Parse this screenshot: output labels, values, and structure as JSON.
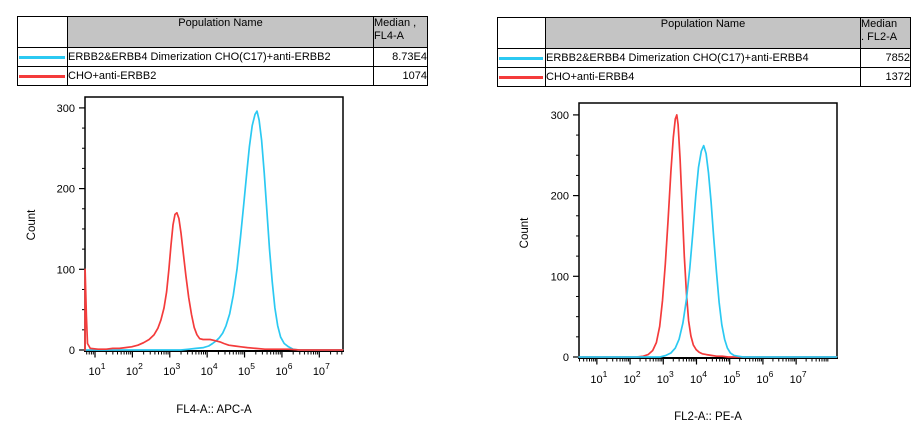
{
  "panels": [
    {
      "table": {
        "population_header": "Population Name",
        "median_header_line1": "Median ,",
        "median_header_line2": "FL4-A",
        "rows": [
          {
            "color": "#2bc9f2",
            "name": "ERBB2&ERBB4 Dimerization CHO(C17)+anti-ERBB2",
            "median": "8.73E4"
          },
          {
            "color": "#f43b3b",
            "name": "CHO+anti-ERBB2",
            "median": "1074"
          }
        ]
      }
    },
    {
      "table": {
        "population_header": "Population Name",
        "median_header_line1": "Median",
        "median_header_line2": ". FL2-A",
        "rows": [
          {
            "color": "#2bc9f2",
            "name": "ERBB2&ERBB4 Dimerization CHO(C17)+anti-ERBB4",
            "median": "7852"
          },
          {
            "color": "#f43b3b",
            "name": "CHO+anti-ERBB4",
            "median": "1372"
          }
        ]
      }
    }
  ],
  "chart_data": [
    {
      "type": "line",
      "title": "",
      "xlabel": "FL4-A:: APC-A",
      "ylabel": "Count",
      "xscale": "log",
      "xlim": [
        5.4,
        43000000
      ],
      "ylim": [
        0,
        313
      ],
      "x_tick_exponents": [
        1,
        2,
        3,
        4,
        5,
        6,
        7
      ],
      "y_major_ticks": [
        0,
        100,
        200,
        300
      ],
      "y_minor_step": 25,
      "grid": false,
      "legend_position": "table-above",
      "series": [
        {
          "name": "ERBB2&ERBB4 Dimerization CHO(C17)+anti-ERBB2",
          "color": "#2bc9f2",
          "median": "8.73E4",
          "points": [
            [
              5.4,
              0
            ],
            [
              2000,
              0
            ],
            [
              3200,
              1
            ],
            [
              5000,
              2
            ],
            [
              8000,
              3
            ],
            [
              11000,
              5
            ],
            [
              14000,
              8
            ],
            [
              17000,
              11
            ],
            [
              21000,
              15
            ],
            [
              26000,
              21
            ],
            [
              32000,
              30
            ],
            [
              40000,
              45
            ],
            [
              50000,
              68
            ],
            [
              63000,
              100
            ],
            [
              78000,
              140
            ],
            [
              95000,
              180
            ],
            [
              115000,
              220
            ],
            [
              135000,
              252
            ],
            [
              160000,
              278
            ],
            [
              190000,
              292
            ],
            [
              215000,
              296
            ],
            [
              245000,
              285
            ],
            [
              285000,
              260
            ],
            [
              335000,
              220
            ],
            [
              395000,
              172
            ],
            [
              465000,
              125
            ],
            [
              550000,
              85
            ],
            [
              650000,
              52
            ],
            [
              770000,
              30
            ],
            [
              920000,
              16
            ],
            [
              1150000,
              8
            ],
            [
              1500000,
              4
            ],
            [
              2000000,
              1
            ],
            [
              2800000,
              0
            ],
            [
              42000000,
              0
            ]
          ]
        },
        {
          "name": "CHO+anti-ERBB2",
          "color": "#f43b3b",
          "median": "1074",
          "points": [
            [
              5.4,
              0
            ],
            [
              5.45,
              100
            ],
            [
              5.9,
              42
            ],
            [
              6.3,
              8
            ],
            [
              7.5,
              2
            ],
            [
              12,
              1
            ],
            [
              20,
              1
            ],
            [
              30,
              2
            ],
            [
              45,
              2
            ],
            [
              65,
              3
            ],
            [
              95,
              4
            ],
            [
              140,
              6
            ],
            [
              200,
              9
            ],
            [
              280,
              13
            ],
            [
              380,
              19
            ],
            [
              480,
              27
            ],
            [
              580,
              37
            ],
            [
              700,
              52
            ],
            [
              820,
              72
            ],
            [
              950,
              100
            ],
            [
              1080,
              130
            ],
            [
              1220,
              155
            ],
            [
              1380,
              168
            ],
            [
              1550,
              170
            ],
            [
              1750,
              163
            ],
            [
              2000,
              145
            ],
            [
              2300,
              120
            ],
            [
              2700,
              92
            ],
            [
              3200,
              65
            ],
            [
              3800,
              44
            ],
            [
              4500,
              28
            ],
            [
              5300,
              19
            ],
            [
              6300,
              14
            ],
            [
              7800,
              13
            ],
            [
              9500,
              13
            ],
            [
              12000,
              13
            ],
            [
              15000,
              12
            ],
            [
              18000,
              11
            ],
            [
              22000,
              10
            ],
            [
              28000,
              8
            ],
            [
              38000,
              6
            ],
            [
              55000,
              5
            ],
            [
              80000,
              4
            ],
            [
              120000,
              3
            ],
            [
              200000,
              2
            ],
            [
              350000,
              1
            ],
            [
              700000,
              1
            ],
            [
              1500000,
              1
            ],
            [
              3000000,
              0
            ],
            [
              42000000,
              0
            ]
          ]
        }
      ]
    },
    {
      "type": "line",
      "title": "",
      "xlabel": "FL2-A:: PE-A",
      "ylabel": "Count",
      "xscale": "log",
      "xlim": [
        2.9,
        170000000
      ],
      "ylim": [
        0,
        315
      ],
      "x_tick_exponents": [
        1,
        2,
        3,
        4,
        5,
        6,
        7
      ],
      "y_major_ticks": [
        0,
        100,
        200,
        300
      ],
      "y_minor_step": 25,
      "grid": false,
      "legend_position": "table-above",
      "series": [
        {
          "name": "CHO+anti-ERBB4",
          "color": "#f43b3b",
          "median": "1372",
          "points": [
            [
              2.9,
              0
            ],
            [
              160,
              0
            ],
            [
              250,
              1
            ],
            [
              350,
              3
            ],
            [
              480,
              8
            ],
            [
              620,
              18
            ],
            [
              780,
              38
            ],
            [
              950,
              70
            ],
            [
              1150,
              115
            ],
            [
              1400,
              170
            ],
            [
              1700,
              230
            ],
            [
              2000,
              272
            ],
            [
              2300,
              295
            ],
            [
              2550,
              300
            ],
            [
              2800,
              288
            ],
            [
              3200,
              245
            ],
            [
              3700,
              185
            ],
            [
              4300,
              125
            ],
            [
              5000,
              78
            ],
            [
              5800,
              45
            ],
            [
              6800,
              26
            ],
            [
              8000,
              15
            ],
            [
              9800,
              9
            ],
            [
              12000,
              6
            ],
            [
              15000,
              4
            ],
            [
              20000,
              3
            ],
            [
              28000,
              2
            ],
            [
              40000,
              1
            ],
            [
              60000,
              1
            ],
            [
              90000,
              0
            ],
            [
              165000000,
              0
            ]
          ]
        },
        {
          "name": "ERBB2&ERBB4 Dimerization CHO(C17)+anti-ERBB4",
          "color": "#2bc9f2",
          "median": "7852",
          "points": [
            [
              2.9,
              0
            ],
            [
              800,
              0
            ],
            [
              1200,
              2
            ],
            [
              1700,
              5
            ],
            [
              2300,
              11
            ],
            [
              3000,
              22
            ],
            [
              3900,
              42
            ],
            [
              5000,
              72
            ],
            [
              6300,
              110
            ],
            [
              7800,
              155
            ],
            [
              9500,
              200
            ],
            [
              11500,
              235
            ],
            [
              14000,
              255
            ],
            [
              16500,
              262
            ],
            [
              19500,
              252
            ],
            [
              23000,
              228
            ],
            [
              27500,
              192
            ],
            [
              33000,
              148
            ],
            [
              40000,
              105
            ],
            [
              48000,
              68
            ],
            [
              58000,
              40
            ],
            [
              70000,
              22
            ],
            [
              85000,
              11
            ],
            [
              105000,
              5
            ],
            [
              135000,
              2
            ],
            [
              180000,
              1
            ],
            [
              250000,
              0
            ],
            [
              165000000,
              0
            ]
          ]
        }
      ]
    }
  ]
}
